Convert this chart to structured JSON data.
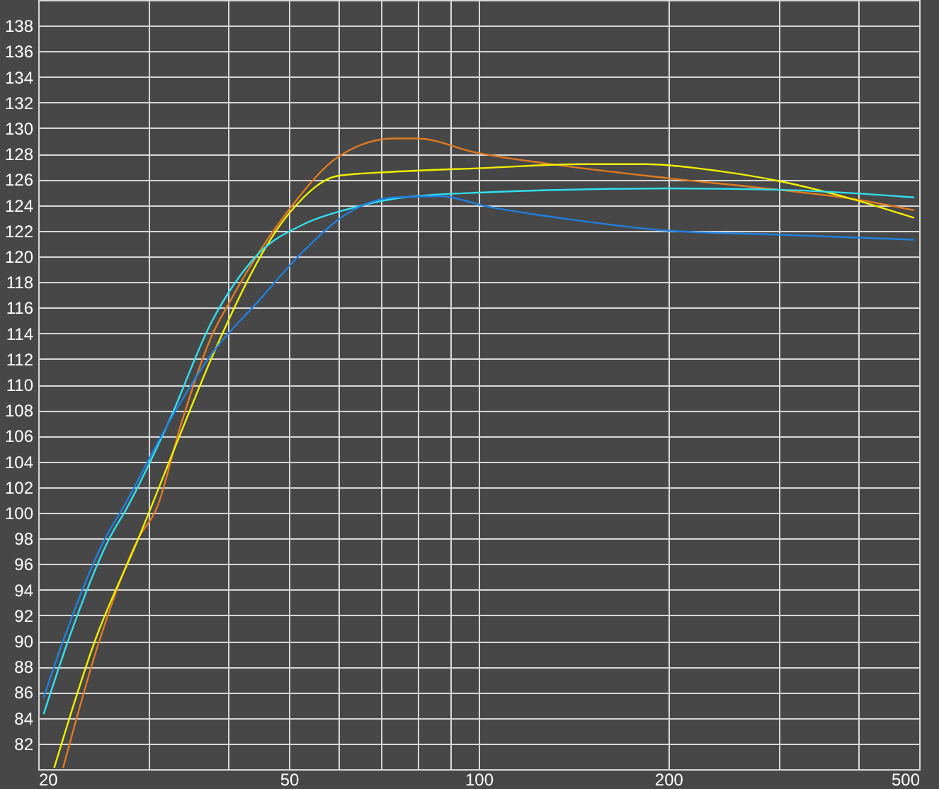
{
  "chart_data": {
    "type": "line",
    "log": "x",
    "grid": true,
    "marker": "none",
    "line_style": "solid",
    "xlim": [
      20,
      500
    ],
    "ylim": [
      80,
      140
    ],
    "xticks": [
      20,
      {
        "value": 30,
        "label": null
      },
      {
        "value": 40,
        "label": null
      },
      50,
      {
        "value": 60,
        "label": null
      },
      {
        "value": 70,
        "label": null
      },
      {
        "value": 80,
        "label": null
      },
      {
        "value": 90,
        "label": null
      },
      100,
      200,
      {
        "value": 300,
        "label": null
      },
      {
        "value": 400,
        "label": null
      },
      500
    ],
    "yticks": [
      82,
      84,
      86,
      88,
      90,
      92,
      94,
      96,
      98,
      100,
      102,
      104,
      106,
      108,
      110,
      112,
      114,
      116,
      118,
      120,
      122,
      124,
      126,
      128,
      130,
      132,
      134,
      136,
      138
    ],
    "series": [
      {
        "color": "#e07b20",
        "x": [
          21.9,
          25,
          28.9,
          30.8,
          33.7,
          37.7,
          40.2,
          50.1,
          60,
          73.3,
          79.8,
          99,
          130,
          200,
          298,
          390,
          491
        ],
        "values": [
          80.1,
          90,
          98.1,
          100.3,
          106.9,
          113.8,
          116.4,
          123.7,
          127.8,
          129.2,
          129.2,
          128.1,
          127.2,
          126.1,
          125.2,
          124.5,
          123.6
        ]
      },
      {
        "color": "#f0f000",
        "x": [
          21.2,
          24.6,
          28.9,
          34.1,
          37.7,
          50.1,
          60,
          73.3,
          103,
          144,
          184,
          237,
          298,
          390,
          491
        ],
        "values": [
          80.1,
          90,
          98.1,
          106.9,
          112.1,
          123.4,
          126.3,
          126.6,
          126.9,
          127.2,
          127.2,
          126.7,
          125.9,
          124.5,
          123.0
        ]
      },
      {
        "color": "#30e0f0",
        "x": [
          20.4,
          22.3,
          26,
          27.6,
          32.1,
          37.7,
          44.5,
          52.7,
          62.1,
          75.9,
          103,
          200,
          298,
          491
        ],
        "values": [
          84.3,
          90,
          98.1,
          100.3,
          106.9,
          114.9,
          120.1,
          122.5,
          123.7,
          124.6,
          125.0,
          125.3,
          125.2,
          124.6
        ]
      },
      {
        "color": "#2080e0",
        "x": [
          20.4,
          21.9,
          25.6,
          27.2,
          32.1,
          37.7,
          44.5,
          52.7,
          62.1,
          73.3,
          86.9,
          103,
          144,
          200,
          298,
          491
        ],
        "values": [
          85.6,
          90,
          98.1,
          100.3,
          106.9,
          112.4,
          116.4,
          120.4,
          123.4,
          124.6,
          124.7,
          123.9,
          122.8,
          122.0,
          121.7,
          121.3
        ]
      }
    ]
  }
}
